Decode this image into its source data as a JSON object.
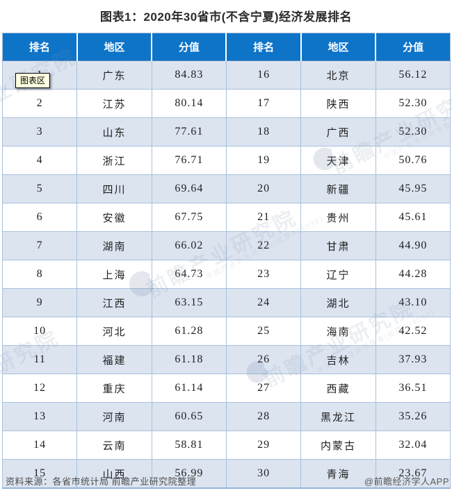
{
  "title": "图表1：2020年30省市(不含宁夏)经济发展排名",
  "tooltip": {
    "label": "图表区"
  },
  "table": {
    "headers": [
      "排名",
      "地区",
      "分值",
      "排名",
      "地区",
      "分值"
    ],
    "rows": [
      [
        "1",
        "广东",
        "84.83",
        "16",
        "北京",
        "56.12"
      ],
      [
        "2",
        "江苏",
        "80.14",
        "17",
        "陕西",
        "52.30"
      ],
      [
        "3",
        "山东",
        "77.61",
        "18",
        "广西",
        "52.30"
      ],
      [
        "4",
        "浙江",
        "76.71",
        "19",
        "天津",
        "50.76"
      ],
      [
        "5",
        "四川",
        "69.64",
        "20",
        "新疆",
        "45.95"
      ],
      [
        "6",
        "安徽",
        "67.75",
        "21",
        "贵州",
        "45.61"
      ],
      [
        "7",
        "湖南",
        "66.02",
        "22",
        "甘肃",
        "44.90"
      ],
      [
        "8",
        "上海",
        "64.73",
        "23",
        "辽宁",
        "44.28"
      ],
      [
        "9",
        "江西",
        "63.15",
        "24",
        "湖北",
        "43.10"
      ],
      [
        "10",
        "河北",
        "61.28",
        "25",
        "海南",
        "42.52"
      ],
      [
        "11",
        "福建",
        "61.18",
        "26",
        "吉林",
        "37.93"
      ],
      [
        "12",
        "重庆",
        "61.14",
        "27",
        "西藏",
        "36.51"
      ],
      [
        "13",
        "河南",
        "60.65",
        "28",
        "黑龙江",
        "35.26"
      ],
      [
        "14",
        "云南",
        "58.81",
        "29",
        "内蒙古",
        "32.04"
      ],
      [
        "15",
        "山西",
        "56.99",
        "30",
        "青海",
        "23.67"
      ]
    ]
  },
  "footer": {
    "source": "资料来源：各省市统计局 前瞻产业研究院整理",
    "credit": "@前瞻经济学人APP"
  },
  "watermark": {
    "brand": "前瞻产业研究院",
    "tagline": "中国产业咨询领导者(股票839599)"
  },
  "colors": {
    "header_bg": "#0E74C8",
    "row_shaded": "#DCE4F0",
    "grid_line": "#A8C0DC",
    "title_text": "#2B2B2B",
    "footer_text": "#4D4D4D",
    "tooltip_bg": "#FFFFE1"
  },
  "chart_data": {
    "type": "table",
    "title": "图表1：2020年30省市(不含宁夏)经济发展排名",
    "columns": [
      "排名",
      "地区",
      "分值"
    ],
    "entries": [
      {
        "rank": 1,
        "region": "广东",
        "score": 84.83
      },
      {
        "rank": 2,
        "region": "江苏",
        "score": 80.14
      },
      {
        "rank": 3,
        "region": "山东",
        "score": 77.61
      },
      {
        "rank": 4,
        "region": "浙江",
        "score": 76.71
      },
      {
        "rank": 5,
        "region": "四川",
        "score": 69.64
      },
      {
        "rank": 6,
        "region": "安徽",
        "score": 67.75
      },
      {
        "rank": 7,
        "region": "湖南",
        "score": 66.02
      },
      {
        "rank": 8,
        "region": "上海",
        "score": 64.73
      },
      {
        "rank": 9,
        "region": "江西",
        "score": 63.15
      },
      {
        "rank": 10,
        "region": "河北",
        "score": 61.28
      },
      {
        "rank": 11,
        "region": "福建",
        "score": 61.18
      },
      {
        "rank": 12,
        "region": "重庆",
        "score": 61.14
      },
      {
        "rank": 13,
        "region": "河南",
        "score": 60.65
      },
      {
        "rank": 14,
        "region": "云南",
        "score": 58.81
      },
      {
        "rank": 15,
        "region": "山西",
        "score": 56.99
      },
      {
        "rank": 16,
        "region": "北京",
        "score": 56.12
      },
      {
        "rank": 17,
        "region": "陕西",
        "score": 52.3
      },
      {
        "rank": 18,
        "region": "广西",
        "score": 52.3
      },
      {
        "rank": 19,
        "region": "天津",
        "score": 50.76
      },
      {
        "rank": 20,
        "region": "新疆",
        "score": 45.95
      },
      {
        "rank": 21,
        "region": "贵州",
        "score": 45.61
      },
      {
        "rank": 22,
        "region": "甘肃",
        "score": 44.9
      },
      {
        "rank": 23,
        "region": "辽宁",
        "score": 44.28
      },
      {
        "rank": 24,
        "region": "湖北",
        "score": 43.1
      },
      {
        "rank": 25,
        "region": "海南",
        "score": 42.52
      },
      {
        "rank": 26,
        "region": "吉林",
        "score": 37.93
      },
      {
        "rank": 27,
        "region": "西藏",
        "score": 36.51
      },
      {
        "rank": 28,
        "region": "黑龙江",
        "score": 35.26
      },
      {
        "rank": 29,
        "region": "内蒙古",
        "score": 32.04
      },
      {
        "rank": 30,
        "region": "青海",
        "score": 23.67
      }
    ]
  }
}
